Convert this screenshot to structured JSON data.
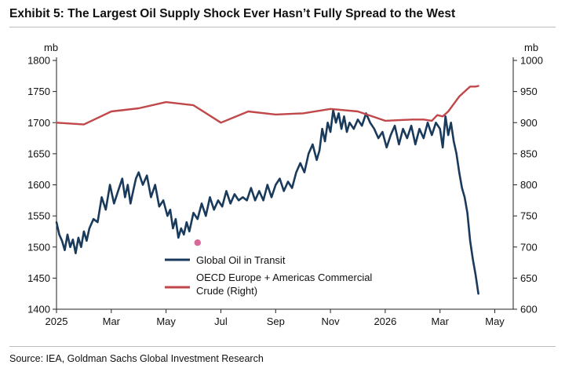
{
  "title": "Exhibit 5: The Largest Oil Supply Shock Ever Hasn’t Fully Spread to the West",
  "source": "Source: IEA, Goldman Sachs Global Investment Research",
  "colors": {
    "transit": "#1a3a5c",
    "oecd": "#c0474a",
    "marker": "#d9699a",
    "axis": "#222222"
  },
  "chart_data": {
    "type": "line",
    "y_left": {
      "unit_label": "mb",
      "ylim": [
        1400,
        1800
      ],
      "ticks": [
        "1800",
        "1750",
        "1700",
        "1650",
        "1600",
        "1550",
        "1500",
        "1450",
        "1400"
      ]
    },
    "y_right": {
      "unit_label": "mb",
      "ylim": [
        600,
        1000
      ],
      "ticks": [
        "1000",
        "950",
        "900",
        "850",
        "800",
        "750",
        "700",
        "650",
        "600"
      ]
    },
    "x_ticks": [
      "2025",
      "Mar",
      "May",
      "Jul",
      "Sep",
      "Nov",
      "2026",
      "Mar",
      "May"
    ],
    "x_range": [
      0,
      16.5
    ],
    "grid": false,
    "legend": {
      "placement": "bottom-center",
      "items": [
        {
          "series": "transit",
          "label": "Global Oil in Transit"
        },
        {
          "series": "oecd",
          "label": "OECD Europe + Americas Commercial",
          "label2": "Crude (Right)"
        }
      ]
    },
    "series": [
      {
        "key": "transit",
        "name": "Global Oil in Transit",
        "axis": "left",
        "x": [
          0,
          0.1,
          0.2,
          0.3,
          0.4,
          0.5,
          0.6,
          0.7,
          0.8,
          0.9,
          1.0,
          1.1,
          1.2,
          1.35,
          1.5,
          1.65,
          1.8,
          1.95,
          2.1,
          2.25,
          2.4,
          2.5,
          2.6,
          2.7,
          2.8,
          2.9,
          3.0,
          3.15,
          3.3,
          3.45,
          3.6,
          3.75,
          3.9,
          4.05,
          4.15,
          4.25,
          4.35,
          4.45,
          4.55,
          4.65,
          4.75,
          4.85,
          5.0,
          5.15,
          5.3,
          5.45,
          5.6,
          5.75,
          5.9,
          6.05,
          6.2,
          6.35,
          6.5,
          6.65,
          6.8,
          6.95,
          7.1,
          7.25,
          7.4,
          7.55,
          7.7,
          7.85,
          8.0,
          8.15,
          8.3,
          8.45,
          8.6,
          8.75,
          8.9,
          9.05,
          9.2,
          9.35,
          9.5,
          9.6,
          9.7,
          9.8,
          9.9,
          10.0,
          10.1,
          10.2,
          10.3,
          10.4,
          10.5,
          10.6,
          10.7,
          10.85,
          11.0,
          11.15,
          11.3,
          11.45,
          11.6,
          11.75,
          11.9,
          12.05,
          12.2,
          12.35,
          12.5,
          12.65,
          12.8,
          12.95,
          13.1,
          13.25,
          13.4,
          13.55,
          13.7,
          13.85,
          14.0,
          14.1,
          14.2,
          14.3,
          14.4,
          14.5,
          14.6,
          14.7,
          14.8,
          14.9,
          15.0,
          15.1,
          15.2,
          15.3,
          15.4
        ],
        "values": [
          1540,
          1520,
          1510,
          1495,
          1520,
          1500,
          1512,
          1490,
          1515,
          1500,
          1525,
          1510,
          1530,
          1545,
          1540,
          1580,
          1560,
          1600,
          1570,
          1590,
          1610,
          1580,
          1600,
          1570,
          1590,
          1610,
          1620,
          1600,
          1615,
          1580,
          1600,
          1565,
          1575,
          1550,
          1560,
          1530,
          1545,
          1515,
          1530,
          1520,
          1540,
          1525,
          1555,
          1545,
          1570,
          1550,
          1580,
          1560,
          1575,
          1565,
          1590,
          1570,
          1585,
          1575,
          1580,
          1575,
          1595,
          1575,
          1590,
          1575,
          1600,
          1580,
          1600,
          1610,
          1590,
          1605,
          1595,
          1620,
          1635,
          1620,
          1650,
          1665,
          1640,
          1655,
          1690,
          1670,
          1700,
          1685,
          1720,
          1700,
          1715,
          1690,
          1710,
          1685,
          1700,
          1690,
          1705,
          1695,
          1715,
          1700,
          1690,
          1675,
          1685,
          1660,
          1680,
          1695,
          1665,
          1690,
          1675,
          1695,
          1665,
          1690,
          1675,
          1700,
          1680,
          1700,
          1690,
          1660,
          1710,
          1680,
          1700,
          1670,
          1650,
          1620,
          1595,
          1580,
          1555,
          1510,
          1480,
          1455,
          1425
        ]
      },
      {
        "key": "oecd",
        "name": "OECD Europe + Americas Commercial Crude (Right)",
        "axis": "right",
        "x": [
          0,
          1.0,
          2.0,
          3.0,
          4.0,
          5.0,
          6.0,
          7.0,
          8.0,
          9.0,
          10.0,
          11.0,
          12.0,
          12.5,
          13.0,
          13.4,
          13.7,
          13.9,
          14.1,
          14.3,
          14.5,
          14.7,
          14.9,
          15.1,
          15.3,
          15.4
        ],
        "values": [
          900,
          897,
          918,
          923,
          933,
          928,
          900,
          918,
          913,
          915,
          922,
          918,
          903,
          904,
          905,
          905,
          903,
          912,
          910,
          918,
          930,
          942,
          950,
          958,
          958,
          959
        ]
      }
    ],
    "marker_point": {
      "x": 5.15,
      "y": 1507
    }
  }
}
